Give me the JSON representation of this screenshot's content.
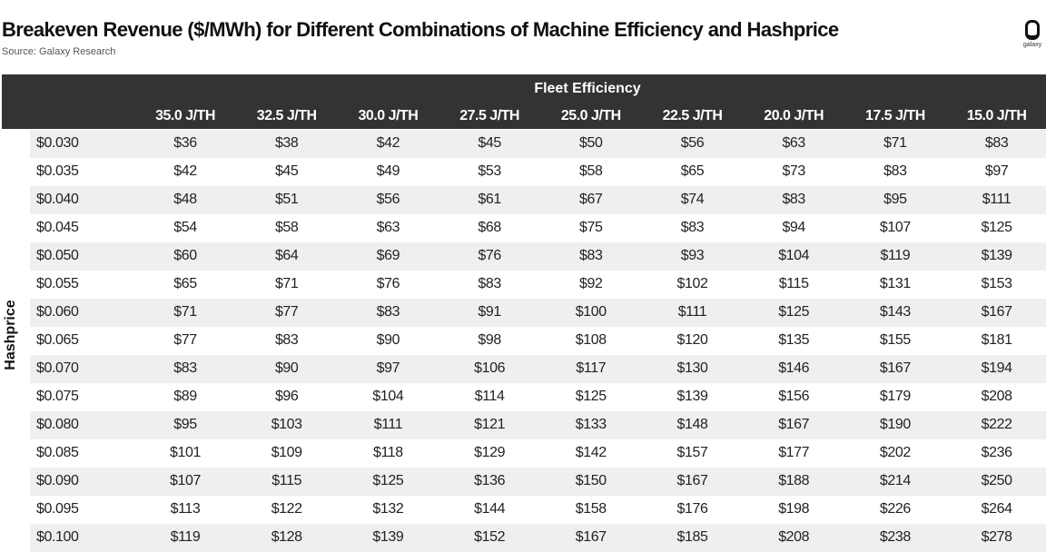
{
  "title": "Breakeven Revenue ($/MWh) for Different Combinations of Machine Efficiency and Hashprice",
  "source": "Source: Galaxy Research",
  "logo_text": "galaxy",
  "chart_data": {
    "type": "table",
    "column_header": "Fleet Efficiency",
    "row_header": "Hashprice",
    "columns": [
      "35.0 J/TH",
      "32.5 J/TH",
      "30.0 J/TH",
      "27.5 J/TH",
      "25.0 J/TH",
      "22.5 J/TH",
      "20.0 J/TH",
      "17.5 J/TH",
      "15.0 J/TH"
    ],
    "rows": [
      {
        "label": "$0.030",
        "values": [
          "$36",
          "$38",
          "$42",
          "$45",
          "$50",
          "$56",
          "$63",
          "$71",
          "$83"
        ]
      },
      {
        "label": "$0.035",
        "values": [
          "$42",
          "$45",
          "$49",
          "$53",
          "$58",
          "$65",
          "$73",
          "$83",
          "$97"
        ]
      },
      {
        "label": "$0.040",
        "values": [
          "$48",
          "$51",
          "$56",
          "$61",
          "$67",
          "$74",
          "$83",
          "$95",
          "$111"
        ]
      },
      {
        "label": "$0.045",
        "values": [
          "$54",
          "$58",
          "$63",
          "$68",
          "$75",
          "$83",
          "$94",
          "$107",
          "$125"
        ]
      },
      {
        "label": "$0.050",
        "values": [
          "$60",
          "$64",
          "$69",
          "$76",
          "$83",
          "$93",
          "$104",
          "$119",
          "$139"
        ]
      },
      {
        "label": "$0.055",
        "values": [
          "$65",
          "$71",
          "$76",
          "$83",
          "$92",
          "$102",
          "$115",
          "$131",
          "$153"
        ]
      },
      {
        "label": "$0.060",
        "values": [
          "$71",
          "$77",
          "$83",
          "$91",
          "$100",
          "$111",
          "$125",
          "$143",
          "$167"
        ]
      },
      {
        "label": "$0.065",
        "values": [
          "$77",
          "$83",
          "$90",
          "$98",
          "$108",
          "$120",
          "$135",
          "$155",
          "$181"
        ]
      },
      {
        "label": "$0.070",
        "values": [
          "$83",
          "$90",
          "$97",
          "$106",
          "$117",
          "$130",
          "$146",
          "$167",
          "$194"
        ]
      },
      {
        "label": "$0.075",
        "values": [
          "$89",
          "$96",
          "$104",
          "$114",
          "$125",
          "$139",
          "$156",
          "$179",
          "$208"
        ]
      },
      {
        "label": "$0.080",
        "values": [
          "$95",
          "$103",
          "$111",
          "$121",
          "$133",
          "$148",
          "$167",
          "$190",
          "$222"
        ]
      },
      {
        "label": "$0.085",
        "values": [
          "$101",
          "$109",
          "$118",
          "$129",
          "$142",
          "$157",
          "$177",
          "$202",
          "$236"
        ]
      },
      {
        "label": "$0.090",
        "values": [
          "$107",
          "$115",
          "$125",
          "$136",
          "$150",
          "$167",
          "$188",
          "$214",
          "$250"
        ]
      },
      {
        "label": "$0.095",
        "values": [
          "$113",
          "$122",
          "$132",
          "$144",
          "$158",
          "$176",
          "$198",
          "$226",
          "$264"
        ]
      },
      {
        "label": "$0.100",
        "values": [
          "$119",
          "$128",
          "$139",
          "$152",
          "$167",
          "$185",
          "$208",
          "$238",
          "$278"
        ]
      }
    ],
    "colors": {
      "header_bg": "#333333",
      "stripe": "#efefef"
    }
  }
}
